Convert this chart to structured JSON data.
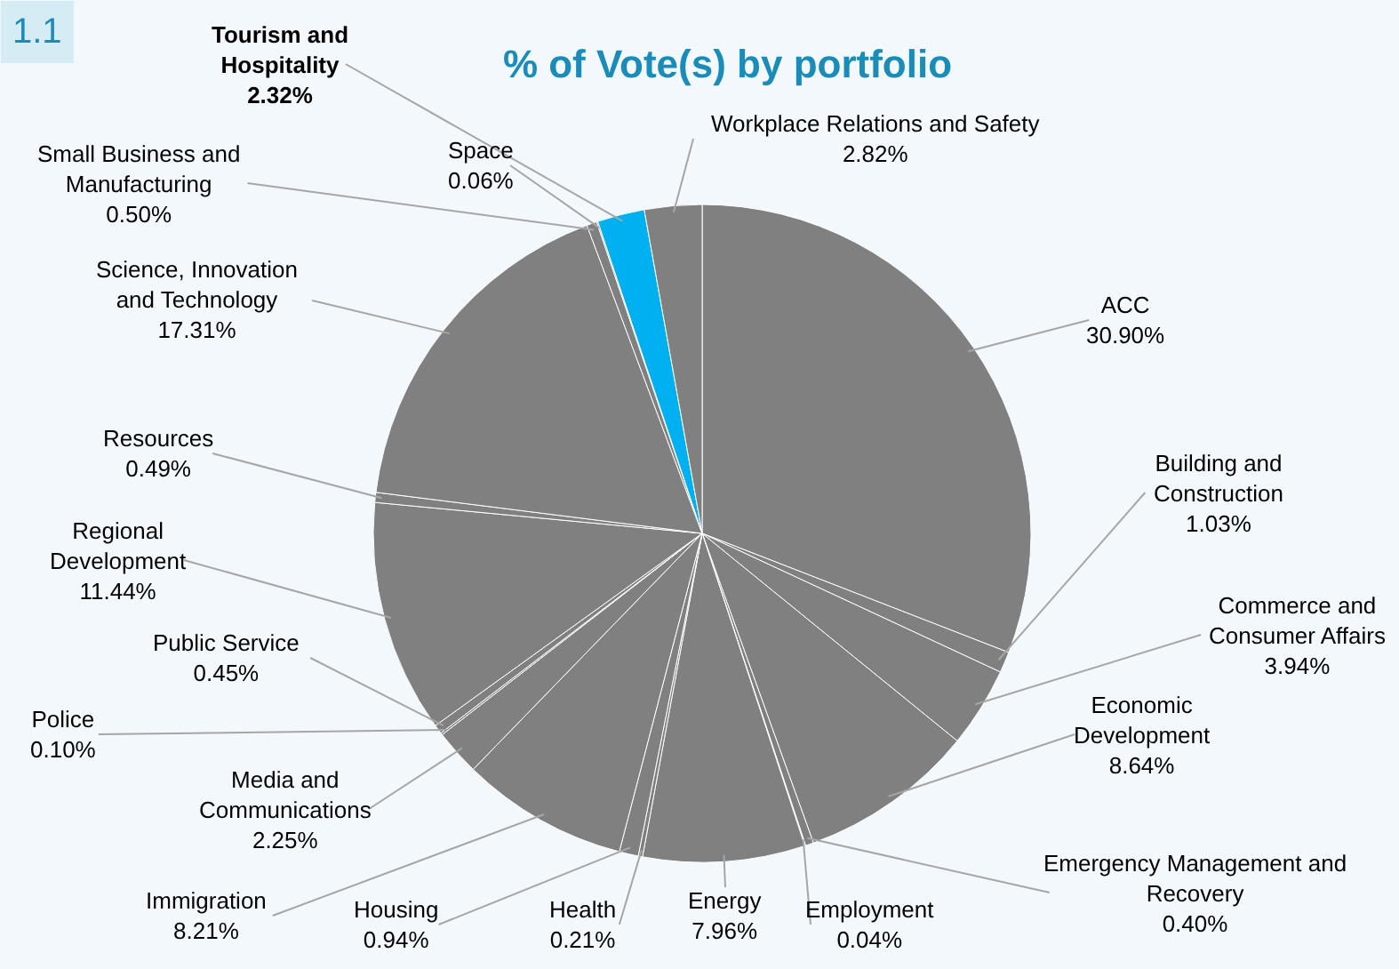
{
  "chart_data": {
    "type": "pie",
    "title": "% of Vote(s) by portfolio",
    "annotations": [
      "1.1"
    ],
    "categories": [
      "ACC",
      "Building and Construction",
      "Commerce and Consumer Affairs",
      "Economic Development",
      "Emergency Management and Recovery",
      "Employment",
      "Energy",
      "Health",
      "Housing",
      "Immigration",
      "Media and Communications",
      "Police",
      "Public Service",
      "Regional Development",
      "Resources",
      "Science, Innovation and Technology",
      "Small Business and Manufacturing",
      "Space",
      "Tourism and Hospitality",
      "Workplace Relations and Safety"
    ],
    "values": [
      30.9,
      1.03,
      3.94,
      8.64,
      0.4,
      0.04,
      7.96,
      0.21,
      0.94,
      8.21,
      2.25,
      0.1,
      0.45,
      11.44,
      0.49,
      17.31,
      0.5,
      0.06,
      2.32,
      2.82
    ],
    "value_labels": [
      "30.90%",
      "1.03%",
      "3.94%",
      "8.64%",
      "0.40%",
      "0.04%",
      "7.96%",
      "0.21%",
      "0.94%",
      "8.21%",
      "2.25%",
      "0.10%",
      "0.45%",
      "11.44%",
      "0.49%",
      "17.31%",
      "0.50%",
      "0.06%",
      "2.32%",
      "2.82%"
    ],
    "colors": [
      "#808080",
      "#808080",
      "#808080",
      "#808080",
      "#808080",
      "#808080",
      "#808080",
      "#808080",
      "#808080",
      "#808080",
      "#808080",
      "#808080",
      "#808080",
      "#808080",
      "#808080",
      "#808080",
      "#808080",
      "#808080",
      "#00b0f0",
      "#808080"
    ]
  }
}
